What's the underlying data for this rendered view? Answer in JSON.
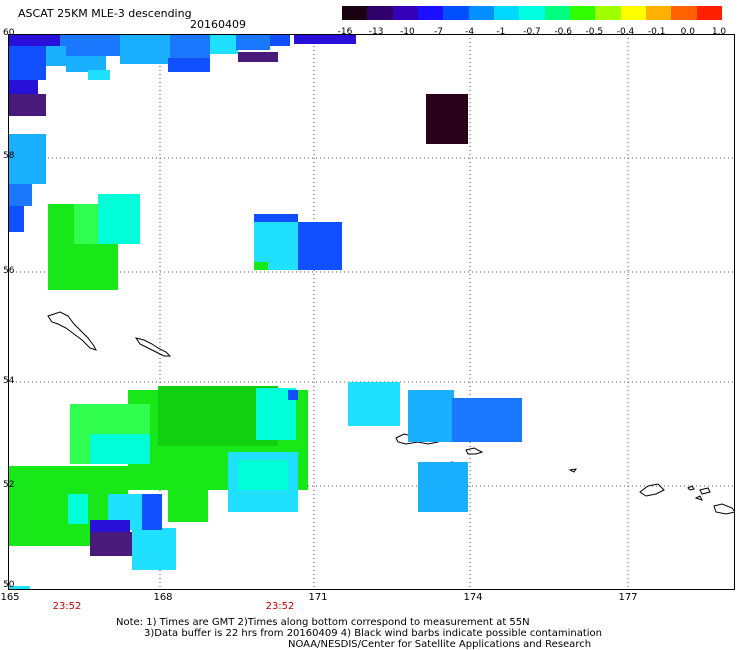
{
  "title": "ASCAT 25KM MLE-3 descending",
  "date": "20160409",
  "colorbar": {
    "labels": [
      "-16",
      "-13",
      "-10",
      "-7",
      "-4",
      "-1",
      "-0.7",
      "-0.6",
      "-0.5",
      "-0.4",
      "-0.1",
      "0.0",
      "1.0"
    ],
    "colors": [
      "#1a0010",
      "#30006a",
      "#3600b8",
      "#1a10ff",
      "#0050ff",
      "#0090ff",
      "#00d8ff",
      "#00ffe0",
      "#00ff80",
      "#30ff00",
      "#a0ff00",
      "#ffff00",
      "#ffb000",
      "#ff6000",
      "#ff2000"
    ]
  },
  "axes": {
    "lat_labels": [
      "60",
      "58",
      "56",
      "54",
      "52",
      "50"
    ],
    "lon_labels": [
      "165",
      "168",
      "171",
      "174",
      "177"
    ],
    "time_labels": [
      "23:52",
      "23:52"
    ]
  },
  "notes": [
    "Note: 1) Times are GMT 2)Times along bottom correspond to measurement at 55N",
    "3)Data buffer is 22 hrs from 20160409 4) Black wind barbs indicate possible contamination",
    "NOAA/NESDIS/Center for Satellite Applications and Research"
  ],
  "colors": {
    "deep_purple": "#280018",
    "purple": "#4a1a7a",
    "dark_blue": "#2810d8",
    "blue": "#1050ff",
    "mid_blue": "#1a78ff",
    "light_blue": "#18b0ff",
    "cyan": "#20e0ff",
    "aqua": "#00ffd8",
    "green_light": "#30ff50",
    "green": "#18e818",
    "green_dark": "#10d010",
    "red_axis_text": "#c00000"
  }
}
